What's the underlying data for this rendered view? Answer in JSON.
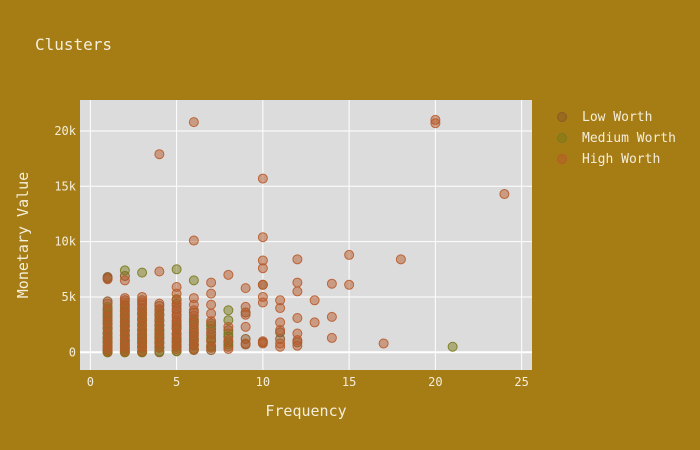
{
  "colors": {
    "background": "#a67c14",
    "plot_background": "#dcdcdc",
    "grid": "#ffffff",
    "text": "#f4eedb",
    "low_worth": "#8c5a28",
    "medium_worth": "#7a7a1a",
    "high_worth": "#b85a2a"
  },
  "chart_data": {
    "type": "scatter",
    "title": "Clusters",
    "xlabel": "Frequency",
    "ylabel": "Monetary Value",
    "xlim": [
      -0.6,
      25.6
    ],
    "ylim": [
      -1600,
      22800
    ],
    "x_ticks": [
      0,
      5,
      10,
      15,
      20,
      25
    ],
    "x_tick_labels": [
      "0",
      "5",
      "10",
      "15",
      "20",
      "25"
    ],
    "y_ticks": [
      0,
      5000,
      10000,
      15000,
      20000
    ],
    "y_tick_labels": [
      "0",
      "5k",
      "10k",
      "15k",
      "20k"
    ],
    "grid": true,
    "legend_position": "right",
    "series": [
      {
        "name": "Low Worth",
        "color": "#8c5a28",
        "points": [
          [
            1,
            6800
          ],
          [
            1,
            6700
          ],
          [
            1,
            4600
          ],
          [
            1,
            3900
          ],
          [
            1,
            3400
          ],
          [
            1,
            2900
          ],
          [
            1,
            2500
          ],
          [
            1,
            2100
          ],
          [
            1,
            1700
          ],
          [
            1,
            1300
          ],
          [
            1,
            900
          ],
          [
            1,
            500
          ],
          [
            1,
            200
          ],
          [
            1,
            0
          ],
          [
            2,
            6900
          ],
          [
            2,
            4700
          ],
          [
            2,
            4200
          ],
          [
            2,
            3700
          ],
          [
            2,
            3200
          ],
          [
            2,
            2700
          ],
          [
            2,
            2300
          ],
          [
            2,
            1900
          ],
          [
            2,
            1500
          ],
          [
            2,
            1100
          ],
          [
            2,
            700
          ],
          [
            2,
            300
          ],
          [
            2,
            0
          ],
          [
            3,
            4700
          ],
          [
            3,
            4300
          ],
          [
            3,
            3900
          ],
          [
            3,
            3400
          ],
          [
            3,
            2900
          ],
          [
            3,
            2400
          ],
          [
            3,
            2000
          ],
          [
            3,
            1600
          ],
          [
            3,
            1200
          ],
          [
            3,
            800
          ],
          [
            3,
            400
          ],
          [
            3,
            0
          ],
          [
            4,
            4200
          ],
          [
            4,
            3800
          ],
          [
            4,
            3300
          ],
          [
            4,
            2800
          ],
          [
            4,
            2400
          ],
          [
            4,
            2000
          ],
          [
            4,
            1600
          ],
          [
            4,
            1200
          ],
          [
            4,
            800
          ],
          [
            4,
            400
          ],
          [
            4,
            0
          ],
          [
            5,
            4400
          ],
          [
            5,
            3900
          ],
          [
            5,
            3400
          ],
          [
            5,
            2900
          ],
          [
            5,
            2500
          ],
          [
            5,
            2100
          ],
          [
            5,
            1700
          ],
          [
            5,
            1300
          ],
          [
            5,
            900
          ],
          [
            5,
            500
          ],
          [
            5,
            100
          ],
          [
            6,
            3600
          ],
          [
            6,
            3000
          ],
          [
            6,
            2500
          ],
          [
            6,
            2000
          ],
          [
            6,
            1500
          ],
          [
            6,
            1000
          ],
          [
            6,
            600
          ],
          [
            6,
            200
          ],
          [
            7,
            2600
          ],
          [
            7,
            2100
          ],
          [
            7,
            1600
          ],
          [
            7,
            1100
          ],
          [
            7,
            600
          ],
          [
            7,
            200
          ],
          [
            8,
            2000
          ],
          [
            8,
            1400
          ],
          [
            8,
            900
          ],
          [
            8,
            500
          ],
          [
            9,
            3600
          ],
          [
            9,
            1200
          ],
          [
            9,
            700
          ],
          [
            10,
            6100
          ],
          [
            10,
            900
          ],
          [
            11,
            1800
          ],
          [
            11,
            1200
          ],
          [
            12,
            900
          ]
        ]
      },
      {
        "name": "Medium Worth",
        "color": "#7a7a1a",
        "points": [
          [
            1,
            4100
          ],
          [
            1,
            3600
          ],
          [
            1,
            3100
          ],
          [
            1,
            2600
          ],
          [
            1,
            2200
          ],
          [
            1,
            1800
          ],
          [
            1,
            1400
          ],
          [
            1,
            1000
          ],
          [
            1,
            600
          ],
          [
            1,
            300
          ],
          [
            1,
            100
          ],
          [
            1,
            0
          ],
          [
            2,
            7400
          ],
          [
            2,
            4300
          ],
          [
            2,
            3800
          ],
          [
            2,
            3300
          ],
          [
            2,
            2800
          ],
          [
            2,
            2400
          ],
          [
            2,
            2000
          ],
          [
            2,
            1600
          ],
          [
            2,
            1200
          ],
          [
            2,
            800
          ],
          [
            2,
            400
          ],
          [
            2,
            100
          ],
          [
            2,
            0
          ],
          [
            3,
            7200
          ],
          [
            3,
            3600
          ],
          [
            3,
            3100
          ],
          [
            3,
            2600
          ],
          [
            3,
            2100
          ],
          [
            3,
            1700
          ],
          [
            3,
            1300
          ],
          [
            3,
            900
          ],
          [
            3,
            500
          ],
          [
            3,
            100
          ],
          [
            3,
            0
          ],
          [
            4,
            3500
          ],
          [
            4,
            3000
          ],
          [
            4,
            2500
          ],
          [
            4,
            2100
          ],
          [
            4,
            1700
          ],
          [
            4,
            1300
          ],
          [
            4,
            900
          ],
          [
            4,
            500
          ],
          [
            4,
            100
          ],
          [
            5,
            7500
          ],
          [
            5,
            4800
          ],
          [
            5,
            2300
          ],
          [
            5,
            1600
          ],
          [
            5,
            1000
          ],
          [
            5,
            500
          ],
          [
            5,
            100
          ],
          [
            6,
            6500
          ],
          [
            6,
            2800
          ],
          [
            6,
            1800
          ],
          [
            6,
            1200
          ],
          [
            6,
            700
          ],
          [
            6,
            300
          ],
          [
            7,
            2400
          ],
          [
            7,
            1300
          ],
          [
            7,
            500
          ],
          [
            8,
            3800
          ],
          [
            8,
            2900
          ],
          [
            8,
            1700
          ],
          [
            8,
            700
          ],
          [
            21,
            500
          ]
        ]
      },
      {
        "name": "High Worth",
        "color": "#b85a2a",
        "points": [
          [
            1,
            6600
          ],
          [
            1,
            4400
          ],
          [
            1,
            3800
          ],
          [
            1,
            3200
          ],
          [
            1,
            2700
          ],
          [
            1,
            2200
          ],
          [
            1,
            1700
          ],
          [
            1,
            1200
          ],
          [
            1,
            800
          ],
          [
            1,
            400
          ],
          [
            1,
            100
          ],
          [
            2,
            6500
          ],
          [
            2,
            4900
          ],
          [
            2,
            4500
          ],
          [
            2,
            4000
          ],
          [
            2,
            3500
          ],
          [
            2,
            3000
          ],
          [
            2,
            2500
          ],
          [
            2,
            2000
          ],
          [
            2,
            1500
          ],
          [
            2,
            1000
          ],
          [
            2,
            500
          ],
          [
            2,
            100
          ],
          [
            3,
            5000
          ],
          [
            3,
            4500
          ],
          [
            3,
            4000
          ],
          [
            3,
            3500
          ],
          [
            3,
            3000
          ],
          [
            3,
            2500
          ],
          [
            3,
            2000
          ],
          [
            3,
            1500
          ],
          [
            3,
            1000
          ],
          [
            3,
            500
          ],
          [
            3,
            100
          ],
          [
            4,
            17900
          ],
          [
            4,
            7300
          ],
          [
            4,
            4400
          ],
          [
            4,
            3900
          ],
          [
            4,
            3400
          ],
          [
            4,
            2900
          ],
          [
            4,
            2400
          ],
          [
            4,
            1900
          ],
          [
            4,
            1400
          ],
          [
            4,
            900
          ],
          [
            4,
            400
          ],
          [
            5,
            5900
          ],
          [
            5,
            5300
          ],
          [
            5,
            4700
          ],
          [
            5,
            4200
          ],
          [
            5,
            3700
          ],
          [
            5,
            3200
          ],
          [
            5,
            2700
          ],
          [
            5,
            2200
          ],
          [
            5,
            1700
          ],
          [
            5,
            1200
          ],
          [
            5,
            700
          ],
          [
            5,
            300
          ],
          [
            6,
            20800
          ],
          [
            6,
            10100
          ],
          [
            6,
            4900
          ],
          [
            6,
            4300
          ],
          [
            6,
            3800
          ],
          [
            6,
            3300
          ],
          [
            6,
            2700
          ],
          [
            6,
            2200
          ],
          [
            6,
            1700
          ],
          [
            6,
            1200
          ],
          [
            6,
            700
          ],
          [
            6,
            300
          ],
          [
            7,
            6300
          ],
          [
            7,
            5300
          ],
          [
            7,
            4300
          ],
          [
            7,
            3500
          ],
          [
            7,
            2800
          ],
          [
            7,
            1800
          ],
          [
            7,
            1000
          ],
          [
            7,
            400
          ],
          [
            8,
            7000
          ],
          [
            8,
            2300
          ],
          [
            8,
            1100
          ],
          [
            8,
            300
          ],
          [
            9,
            5800
          ],
          [
            9,
            4100
          ],
          [
            9,
            3400
          ],
          [
            9,
            2300
          ],
          [
            9,
            800
          ],
          [
            10,
            15700
          ],
          [
            10,
            10400
          ],
          [
            10,
            8300
          ],
          [
            10,
            7600
          ],
          [
            10,
            6100
          ],
          [
            10,
            5000
          ],
          [
            10,
            4500
          ],
          [
            10,
            1000
          ],
          [
            10,
            800
          ],
          [
            11,
            4700
          ],
          [
            11,
            4000
          ],
          [
            11,
            2700
          ],
          [
            11,
            2000
          ],
          [
            11,
            800
          ],
          [
            11,
            500
          ],
          [
            12,
            8400
          ],
          [
            12,
            6300
          ],
          [
            12,
            5500
          ],
          [
            12,
            3100
          ],
          [
            12,
            1700
          ],
          [
            12,
            1100
          ],
          [
            12,
            600
          ],
          [
            13,
            4700
          ],
          [
            13,
            2700
          ],
          [
            14,
            6200
          ],
          [
            14,
            3200
          ],
          [
            14,
            1300
          ],
          [
            15,
            8800
          ],
          [
            15,
            6100
          ],
          [
            17,
            800
          ],
          [
            18,
            8400
          ],
          [
            20,
            21000
          ],
          [
            20,
            20700
          ],
          [
            24,
            14300
          ]
        ]
      }
    ]
  }
}
